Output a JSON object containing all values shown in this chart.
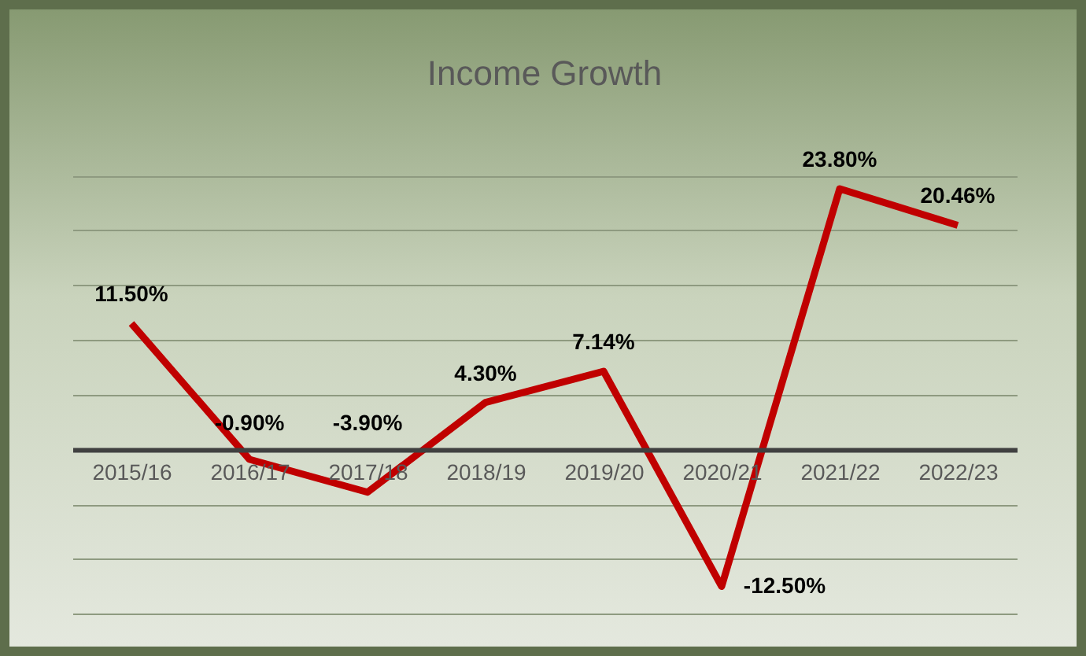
{
  "chart_data": {
    "type": "line",
    "title": "Income Growth",
    "categories": [
      "2015/16",
      "2016/17",
      "2017/18",
      "2018/19",
      "2019/20",
      "2020/21",
      "2021/22",
      "2022/23"
    ],
    "series": [
      {
        "color": "#c00000",
        "values": [
          11.5,
          -0.9,
          -3.9,
          4.3,
          7.14,
          -12.5,
          23.8,
          20.46
        ],
        "value_labels": [
          "11.50%",
          "-0.90%",
          "-3.90%",
          "4.30%",
          "7.14%",
          "-12.50%",
          "23.80%",
          "20.46%"
        ]
      }
    ],
    "grid": "y",
    "tick_labels": "x",
    "marker": "none",
    "line_style": "solid"
  }
}
